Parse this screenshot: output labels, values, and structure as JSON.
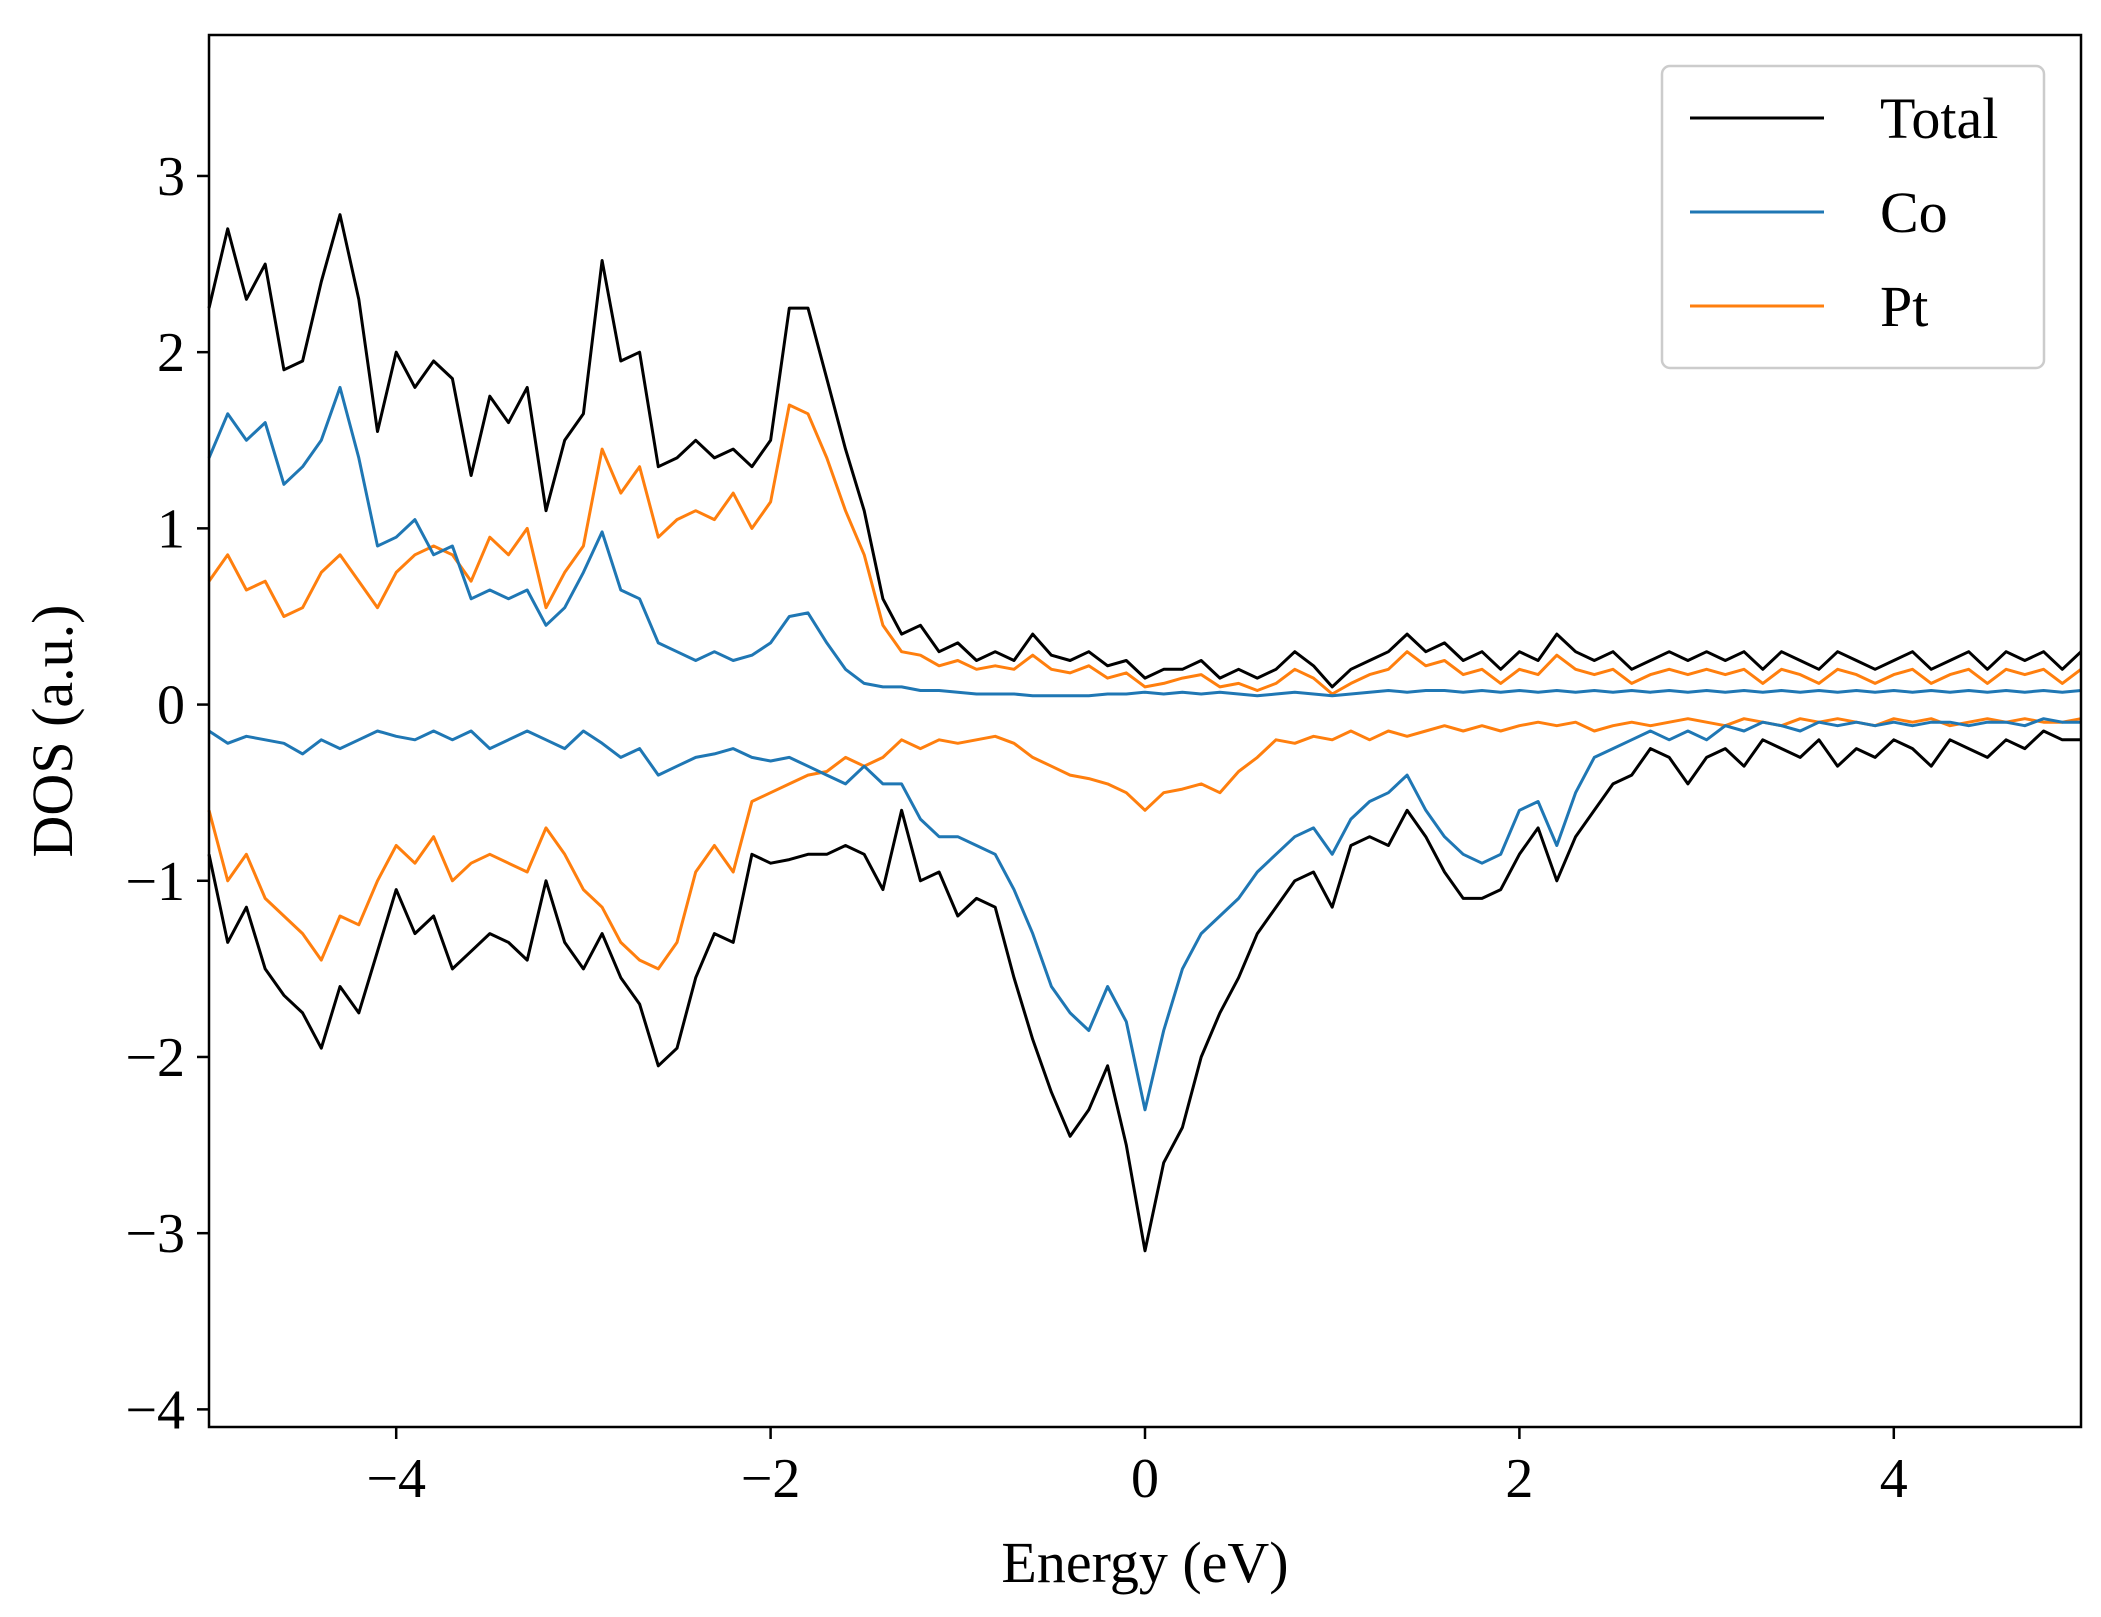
{
  "chart_data": {
    "type": "line",
    "title": "",
    "xlabel": "Energy (eV)",
    "ylabel": "DOS (a.u.)",
    "xlim": [
      -5,
      5
    ],
    "ylim": [
      -4.1,
      3.8
    ],
    "xticks": [
      -4,
      -2,
      0,
      2,
      4
    ],
    "yticks": [
      -4,
      -3,
      -2,
      -1,
      0,
      1,
      2,
      3
    ],
    "xtick_labels": [
      "−4",
      "−2",
      "0",
      "2",
      "4"
    ],
    "ytick_labels": [
      "−4",
      "−3",
      "−2",
      "−1",
      "0",
      "1",
      "2",
      "3"
    ],
    "grid": false,
    "legend_position": "top-right",
    "x": [
      -5.0,
      -4.9,
      -4.8,
      -4.7,
      -4.6,
      -4.5,
      -4.4,
      -4.3,
      -4.2,
      -4.1,
      -4.0,
      -3.9,
      -3.8,
      -3.7,
      -3.6,
      -3.5,
      -3.4,
      -3.3,
      -3.2,
      -3.1,
      -3.0,
      -2.9,
      -2.8,
      -2.7,
      -2.6,
      -2.5,
      -2.4,
      -2.3,
      -2.2,
      -2.1,
      -2.0,
      -1.9,
      -1.8,
      -1.7,
      -1.6,
      -1.5,
      -1.4,
      -1.3,
      -1.2,
      -1.1,
      -1.0,
      -0.9,
      -0.8,
      -0.7,
      -0.6,
      -0.5,
      -0.4,
      -0.3,
      -0.2,
      -0.1,
      0.0,
      0.1,
      0.2,
      0.3,
      0.4,
      0.5,
      0.6,
      0.7,
      0.8,
      0.9,
      1.0,
      1.1,
      1.2,
      1.3,
      1.4,
      1.5,
      1.6,
      1.7,
      1.8,
      1.9,
      2.0,
      2.1,
      2.2,
      2.3,
      2.4,
      2.5,
      2.6,
      2.7,
      2.8,
      2.9,
      3.0,
      3.1,
      3.2,
      3.3,
      3.4,
      3.5,
      3.6,
      3.7,
      3.8,
      3.9,
      4.0,
      4.1,
      4.2,
      4.3,
      4.4,
      4.5,
      4.6,
      4.7,
      4.8,
      4.9,
      5.0
    ],
    "series": [
      {
        "name": "Total",
        "color": "#000000",
        "up": [
          2.25,
          2.7,
          2.3,
          2.5,
          1.9,
          1.95,
          2.4,
          2.78,
          2.3,
          1.55,
          2.0,
          1.8,
          1.95,
          1.85,
          1.3,
          1.75,
          1.6,
          1.8,
          1.1,
          1.5,
          1.65,
          2.52,
          1.95,
          2.0,
          1.35,
          1.4,
          1.5,
          1.4,
          1.45,
          1.35,
          1.5,
          2.25,
          2.25,
          1.85,
          1.45,
          1.1,
          0.6,
          0.4,
          0.45,
          0.3,
          0.35,
          0.25,
          0.3,
          0.25,
          0.4,
          0.28,
          0.25,
          0.3,
          0.22,
          0.25,
          0.15,
          0.2,
          0.2,
          0.25,
          0.15,
          0.2,
          0.15,
          0.2,
          0.3,
          0.22,
          0.1,
          0.2,
          0.25,
          0.3,
          0.4,
          0.3,
          0.35,
          0.25,
          0.3,
          0.2,
          0.3,
          0.25,
          0.4,
          0.3,
          0.25,
          0.3,
          0.2,
          0.25,
          0.3,
          0.25,
          0.3,
          0.25,
          0.3,
          0.2,
          0.3,
          0.25,
          0.2,
          0.3,
          0.25,
          0.2,
          0.25,
          0.3,
          0.2,
          0.25,
          0.3,
          0.2,
          0.3,
          0.25,
          0.3,
          0.2,
          0.3
        ],
        "down": [
          -0.85,
          -1.35,
          -1.15,
          -1.5,
          -1.65,
          -1.75,
          -1.95,
          -1.6,
          -1.75,
          -1.4,
          -1.05,
          -1.3,
          -1.2,
          -1.5,
          -1.4,
          -1.3,
          -1.35,
          -1.45,
          -1.0,
          -1.35,
          -1.5,
          -1.3,
          -1.55,
          -1.7,
          -2.05,
          -1.95,
          -1.55,
          -1.3,
          -1.35,
          -0.85,
          -0.9,
          -0.88,
          -0.85,
          -0.85,
          -0.8,
          -0.85,
          -1.05,
          -0.6,
          -1.0,
          -0.95,
          -1.2,
          -1.1,
          -1.15,
          -1.55,
          -1.9,
          -2.2,
          -2.45,
          -2.3,
          -2.05,
          -2.5,
          -3.1,
          -2.6,
          -2.4,
          -2.0,
          -1.75,
          -1.55,
          -1.3,
          -1.15,
          -1.0,
          -0.95,
          -1.15,
          -0.8,
          -0.75,
          -0.8,
          -0.6,
          -0.75,
          -0.95,
          -1.1,
          -1.1,
          -1.05,
          -0.85,
          -0.7,
          -1.0,
          -0.75,
          -0.6,
          -0.45,
          -0.4,
          -0.25,
          -0.3,
          -0.45,
          -0.3,
          -0.25,
          -0.35,
          -0.2,
          -0.25,
          -0.3,
          -0.2,
          -0.35,
          -0.25,
          -0.3,
          -0.2,
          -0.25,
          -0.35,
          -0.2,
          -0.25,
          -0.3,
          -0.2,
          -0.25,
          -0.15,
          -0.2,
          -0.2
        ]
      },
      {
        "name": "Co",
        "color": "#1f77b4",
        "up": [
          1.4,
          1.65,
          1.5,
          1.6,
          1.25,
          1.35,
          1.5,
          1.8,
          1.4,
          0.9,
          0.95,
          1.05,
          0.85,
          0.9,
          0.6,
          0.65,
          0.6,
          0.65,
          0.45,
          0.55,
          0.75,
          0.98,
          0.65,
          0.6,
          0.35,
          0.3,
          0.25,
          0.3,
          0.25,
          0.28,
          0.35,
          0.5,
          0.52,
          0.35,
          0.2,
          0.12,
          0.1,
          0.1,
          0.08,
          0.08,
          0.07,
          0.06,
          0.06,
          0.06,
          0.05,
          0.05,
          0.05,
          0.05,
          0.06,
          0.06,
          0.07,
          0.06,
          0.07,
          0.06,
          0.07,
          0.06,
          0.05,
          0.06,
          0.07,
          0.06,
          0.05,
          0.06,
          0.07,
          0.08,
          0.07,
          0.08,
          0.08,
          0.07,
          0.08,
          0.07,
          0.08,
          0.07,
          0.08,
          0.07,
          0.08,
          0.07,
          0.08,
          0.07,
          0.08,
          0.07,
          0.08,
          0.07,
          0.08,
          0.07,
          0.08,
          0.07,
          0.08,
          0.07,
          0.08,
          0.07,
          0.08,
          0.07,
          0.08,
          0.07,
          0.08,
          0.07,
          0.08,
          0.07,
          0.08,
          0.07,
          0.08
        ],
        "down": [
          -0.15,
          -0.22,
          -0.18,
          -0.2,
          -0.22,
          -0.28,
          -0.2,
          -0.25,
          -0.2,
          -0.15,
          -0.18,
          -0.2,
          -0.15,
          -0.2,
          -0.15,
          -0.25,
          -0.2,
          -0.15,
          -0.2,
          -0.25,
          -0.15,
          -0.22,
          -0.3,
          -0.25,
          -0.4,
          -0.35,
          -0.3,
          -0.28,
          -0.25,
          -0.3,
          -0.32,
          -0.3,
          -0.35,
          -0.4,
          -0.45,
          -0.35,
          -0.45,
          -0.45,
          -0.65,
          -0.75,
          -0.75,
          -0.8,
          -0.85,
          -1.05,
          -1.3,
          -1.6,
          -1.75,
          -1.85,
          -1.6,
          -1.8,
          -2.3,
          -1.85,
          -1.5,
          -1.3,
          -1.2,
          -1.1,
          -0.95,
          -0.85,
          -0.75,
          -0.7,
          -0.85,
          -0.65,
          -0.55,
          -0.5,
          -0.4,
          -0.6,
          -0.75,
          -0.85,
          -0.9,
          -0.85,
          -0.6,
          -0.55,
          -0.8,
          -0.5,
          -0.3,
          -0.25,
          -0.2,
          -0.15,
          -0.2,
          -0.15,
          -0.2,
          -0.12,
          -0.15,
          -0.1,
          -0.12,
          -0.15,
          -0.1,
          -0.12,
          -0.1,
          -0.12,
          -0.1,
          -0.12,
          -0.1,
          -0.1,
          -0.12,
          -0.1,
          -0.1,
          -0.12,
          -0.08,
          -0.1,
          -0.1
        ]
      },
      {
        "name": "Pt",
        "color": "#ff7f0e",
        "up": [
          0.7,
          0.85,
          0.65,
          0.7,
          0.5,
          0.55,
          0.75,
          0.85,
          0.7,
          0.55,
          0.75,
          0.85,
          0.9,
          0.85,
          0.7,
          0.95,
          0.85,
          1.0,
          0.55,
          0.75,
          0.9,
          1.45,
          1.2,
          1.35,
          0.95,
          1.05,
          1.1,
          1.05,
          1.2,
          1.0,
          1.15,
          1.7,
          1.65,
          1.4,
          1.1,
          0.85,
          0.45,
          0.3,
          0.28,
          0.22,
          0.25,
          0.2,
          0.22,
          0.2,
          0.28,
          0.2,
          0.18,
          0.22,
          0.15,
          0.18,
          0.1,
          0.12,
          0.15,
          0.17,
          0.1,
          0.12,
          0.08,
          0.12,
          0.2,
          0.15,
          0.06,
          0.12,
          0.17,
          0.2,
          0.3,
          0.22,
          0.25,
          0.17,
          0.2,
          0.12,
          0.2,
          0.17,
          0.28,
          0.2,
          0.17,
          0.2,
          0.12,
          0.17,
          0.2,
          0.17,
          0.2,
          0.17,
          0.2,
          0.12,
          0.2,
          0.17,
          0.12,
          0.2,
          0.17,
          0.12,
          0.17,
          0.2,
          0.12,
          0.17,
          0.2,
          0.12,
          0.2,
          0.17,
          0.2,
          0.12,
          0.2
        ],
        "down": [
          -0.6,
          -1.0,
          -0.85,
          -1.1,
          -1.2,
          -1.3,
          -1.45,
          -1.2,
          -1.25,
          -1.0,
          -0.8,
          -0.9,
          -0.75,
          -1.0,
          -0.9,
          -0.85,
          -0.9,
          -0.95,
          -0.7,
          -0.85,
          -1.05,
          -1.15,
          -1.35,
          -1.45,
          -1.5,
          -1.35,
          -0.95,
          -0.8,
          -0.95,
          -0.55,
          -0.5,
          -0.45,
          -0.4,
          -0.38,
          -0.3,
          -0.35,
          -0.3,
          -0.2,
          -0.25,
          -0.2,
          -0.22,
          -0.2,
          -0.18,
          -0.22,
          -0.3,
          -0.35,
          -0.4,
          -0.42,
          -0.45,
          -0.5,
          -0.6,
          -0.5,
          -0.48,
          -0.45,
          -0.5,
          -0.38,
          -0.3,
          -0.2,
          -0.22,
          -0.18,
          -0.2,
          -0.15,
          -0.2,
          -0.15,
          -0.18,
          -0.15,
          -0.12,
          -0.15,
          -0.12,
          -0.15,
          -0.12,
          -0.1,
          -0.12,
          -0.1,
          -0.15,
          -0.12,
          -0.1,
          -0.12,
          -0.1,
          -0.08,
          -0.1,
          -0.12,
          -0.08,
          -0.1,
          -0.12,
          -0.08,
          -0.1,
          -0.08,
          -0.1,
          -0.12,
          -0.08,
          -0.1,
          -0.08,
          -0.12,
          -0.1,
          -0.08,
          -0.1,
          -0.08,
          -0.1,
          -0.1,
          -0.08
        ]
      }
    ]
  }
}
